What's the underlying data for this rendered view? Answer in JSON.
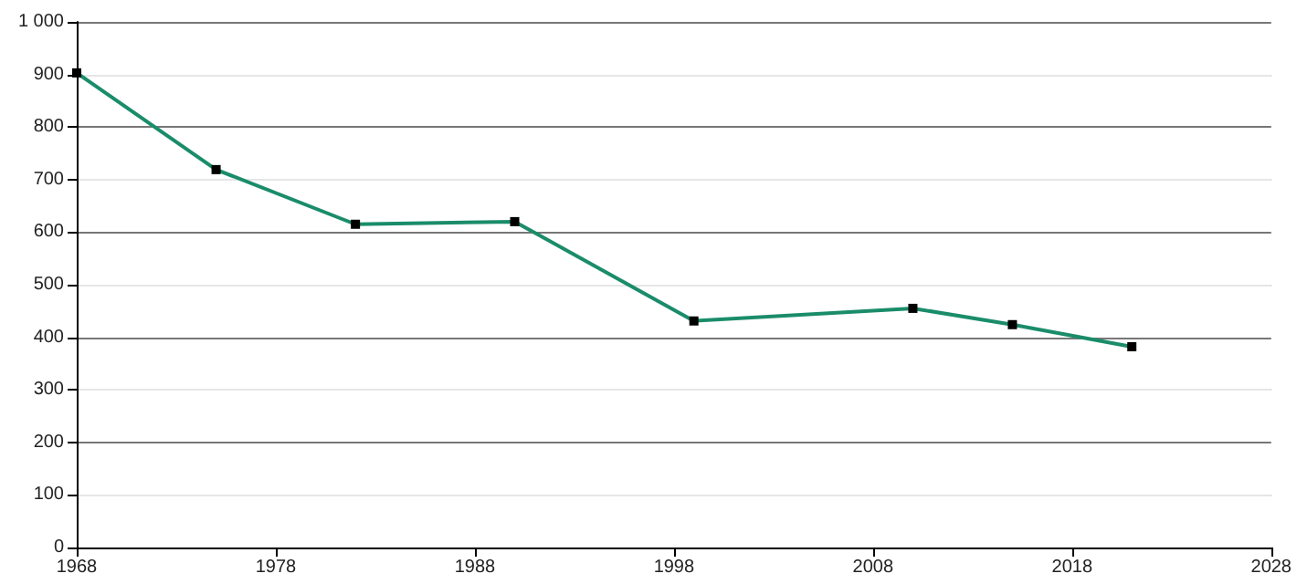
{
  "chart_data": {
    "type": "line",
    "x": [
      1968,
      1975,
      1982,
      1990,
      1999,
      2010,
      2015,
      2021
    ],
    "series": [
      {
        "color": "#1a8c6a",
        "values": [
          903,
          719,
          615,
          620,
          431,
          455,
          424,
          382
        ]
      }
    ],
    "xlim": [
      1968,
      2028
    ],
    "xticks": [
      1968,
      1978,
      1988,
      1998,
      2008,
      2018,
      2028
    ],
    "ylim": [
      0,
      1000
    ],
    "yticks": [
      0,
      100,
      200,
      300,
      400,
      500,
      600,
      700,
      800,
      900,
      {
        "value": 1000,
        "label": "1 000"
      }
    ],
    "grid": "y",
    "marker": "square",
    "line_style": "solid"
  }
}
